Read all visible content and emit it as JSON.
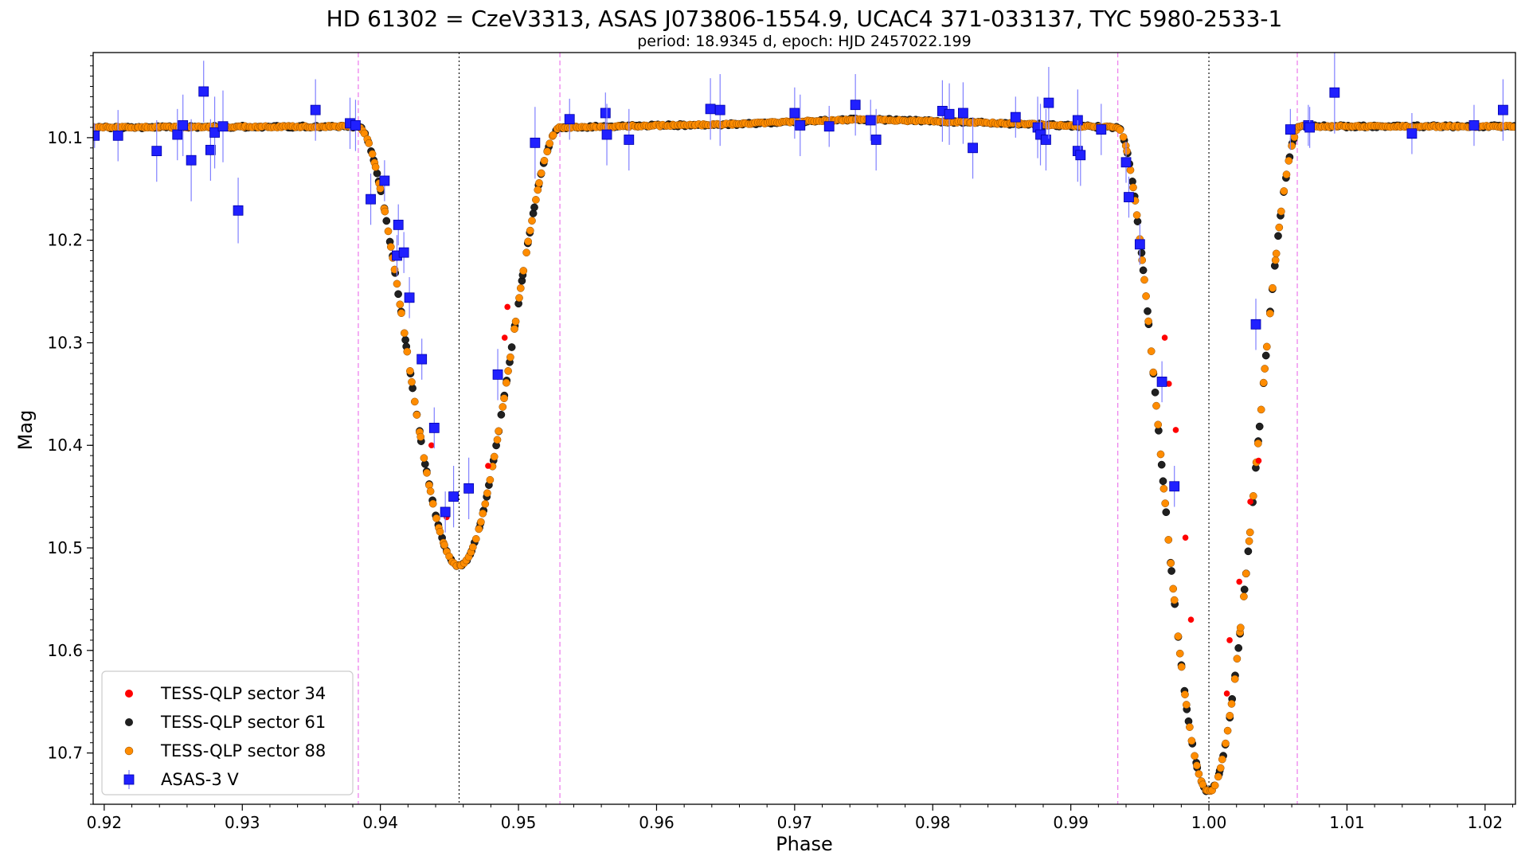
{
  "chart_data": {
    "type": "scatter",
    "title": "HD 61302 = CzeV3313, ASAS J073806-1554.9, UCAC4 371-033137, TYC 5980-2533-1",
    "subtitle": "period: 18.9345 d, epoch: HJD 2457022.199",
    "xlabel": "Phase",
    "ylabel": "Mag",
    "xlim": [
      0.9192,
      1.0222
    ],
    "ylim": [
      10.75,
      10.017
    ],
    "y_inverted": true,
    "x_ticks": [
      "0.92",
      "0.93",
      "0.94",
      "0.95",
      "0.96",
      "0.97",
      "0.98",
      "0.99",
      "1.00",
      "1.01",
      "1.02"
    ],
    "y_ticks": [
      "10.1",
      "10.2",
      "10.3",
      "10.4",
      "10.5",
      "10.6",
      "10.7"
    ],
    "legend_position": "lower-left",
    "vertical_lines": [
      {
        "x": 0.9384,
        "style": "dashed",
        "color": "#ee82ee"
      },
      {
        "x": 0.953,
        "style": "dashed",
        "color": "#ee82ee"
      },
      {
        "x": 0.9934,
        "style": "dashed",
        "color": "#ee82ee"
      },
      {
        "x": 1.0064,
        "style": "dashed",
        "color": "#ee82ee"
      },
      {
        "x": 0.9457,
        "style": "dotted",
        "color": "#000000"
      },
      {
        "x": 1.0,
        "style": "dotted",
        "color": "#000000"
      }
    ],
    "light_curve_model": {
      "baseline": [
        [
          0.9192,
          10.09
        ],
        [
          0.9384,
          10.089
        ],
        [
          0.953,
          10.09
        ],
        [
          0.965,
          10.087
        ],
        [
          0.975,
          10.082
        ],
        [
          0.985,
          10.086
        ],
        [
          0.9934,
          10.09
        ],
        [
          1.0064,
          10.089
        ],
        [
          1.0222,
          10.089
        ]
      ],
      "eclipses": [
        {
          "center": 0.9457,
          "half_width": 0.0073,
          "depth": 0.428
        },
        {
          "center": 1.0,
          "half_width": 0.0066,
          "depth": 0.648
        }
      ]
    },
    "series": [
      {
        "name": "TESS-QLP sector 34",
        "color": "#ff0000",
        "marker": "circle",
        "points": [
          [
            0.9437,
            10.4
          ],
          [
            0.9448,
            10.47
          ],
          [
            0.9478,
            10.42
          ],
          [
            0.949,
            10.295
          ],
          [
            0.9492,
            10.265
          ],
          [
            0.9968,
            10.295
          ],
          [
            0.9971,
            10.34
          ],
          [
            0.9976,
            10.385
          ],
          [
            0.9983,
            10.49
          ],
          [
            0.9987,
            10.57
          ],
          [
            1.0013,
            10.642
          ],
          [
            1.0015,
            10.59
          ],
          [
            1.0022,
            10.533
          ],
          [
            1.0036,
            10.415
          ],
          [
            1.003,
            10.455
          ]
        ]
      },
      {
        "name": "TESS-QLP sector 61",
        "color": "#202020",
        "marker": "circle",
        "n": 500,
        "seed": 61,
        "x_range": [
          0.9192,
          1.0222
        ],
        "scatter": 0.0012
      },
      {
        "name": "TESS-QLP sector 88",
        "color": "#ff8c00",
        "marker": "circle",
        "n": 600,
        "seed": 88,
        "x_range": [
          0.9192,
          1.0222
        ],
        "scatter": 0.0008
      },
      {
        "name": "ASAS-3 V",
        "color": "#2020ff",
        "marker": "square",
        "error_color": "#8080ff",
        "points": [
          [
            0.9193,
            10.098,
            0.012
          ],
          [
            0.921,
            10.098,
            0.025
          ],
          [
            0.9238,
            10.113,
            0.03
          ],
          [
            0.9253,
            10.097,
            0.025
          ],
          [
            0.9257,
            10.088,
            0.03
          ],
          [
            0.9263,
            10.122,
            0.04
          ],
          [
            0.9272,
            10.055,
            0.03
          ],
          [
            0.9277,
            10.112,
            0.03
          ],
          [
            0.928,
            10.095,
            0.035
          ],
          [
            0.9286,
            10.089,
            0.035
          ],
          [
            0.9297,
            10.171,
            0.032
          ],
          [
            0.9353,
            10.073,
            0.03
          ],
          [
            0.9378,
            10.086,
            0.025
          ],
          [
            0.9382,
            10.088,
            0.025
          ],
          [
            0.9393,
            10.16,
            0.025
          ],
          [
            0.9403,
            10.142,
            0.02
          ],
          [
            0.9413,
            10.185,
            0.02
          ],
          [
            0.9412,
            10.215,
            0.02
          ],
          [
            0.9417,
            10.212,
            0.02
          ],
          [
            0.9421,
            10.256,
            0.02
          ],
          [
            0.943,
            10.316,
            0.02
          ],
          [
            0.9439,
            10.383,
            0.02
          ],
          [
            0.9447,
            10.465,
            0.02
          ],
          [
            0.9453,
            10.45,
            0.03
          ],
          [
            0.9464,
            10.442,
            0.03
          ],
          [
            0.9485,
            10.331,
            0.025
          ],
          [
            0.9512,
            10.105,
            0.035
          ],
          [
            0.9537,
            10.082,
            0.02
          ],
          [
            0.9563,
            10.076,
            0.02
          ],
          [
            0.9564,
            10.097,
            0.03
          ],
          [
            0.958,
            10.102,
            0.03
          ],
          [
            0.9639,
            10.072,
            0.03
          ],
          [
            0.9646,
            10.073,
            0.035
          ],
          [
            0.97,
            10.076,
            0.025
          ],
          [
            0.9704,
            10.088,
            0.03
          ],
          [
            0.9725,
            10.089,
            0.02
          ],
          [
            0.9744,
            10.068,
            0.03
          ],
          [
            0.9755,
            10.083,
            0.02
          ],
          [
            0.9759,
            10.102,
            0.03
          ],
          [
            0.9807,
            10.074,
            0.03
          ],
          [
            0.9812,
            10.077,
            0.03
          ],
          [
            0.9822,
            10.076,
            0.03
          ],
          [
            0.9829,
            10.11,
            0.03
          ],
          [
            0.986,
            10.08,
            0.02
          ],
          [
            0.9876,
            10.09,
            0.03
          ],
          [
            0.9878,
            10.097,
            0.03
          ],
          [
            0.9882,
            10.102,
            0.03
          ],
          [
            0.9884,
            10.066,
            0.035
          ],
          [
            0.9905,
            10.083,
            0.03
          ],
          [
            0.9905,
            10.113,
            0.03
          ],
          [
            0.9907,
            10.117,
            0.03
          ],
          [
            0.9922,
            10.092,
            0.025
          ],
          [
            0.994,
            10.124,
            0.02
          ],
          [
            0.9942,
            10.158,
            0.02
          ],
          [
            0.995,
            10.204,
            0.02
          ],
          [
            0.9966,
            10.338,
            0.02
          ],
          [
            0.9975,
            10.44,
            0.02
          ],
          [
            1.0034,
            10.282,
            0.025
          ],
          [
            1.0059,
            10.092,
            0.02
          ],
          [
            1.0072,
            10.088,
            0.02
          ],
          [
            1.0073,
            10.09,
            0.02
          ],
          [
            1.0091,
            10.056,
            0.04
          ],
          [
            1.0147,
            10.096,
            0.02
          ],
          [
            1.0192,
            10.088,
            0.02
          ],
          [
            1.0213,
            10.073,
            0.03
          ]
        ]
      }
    ]
  }
}
